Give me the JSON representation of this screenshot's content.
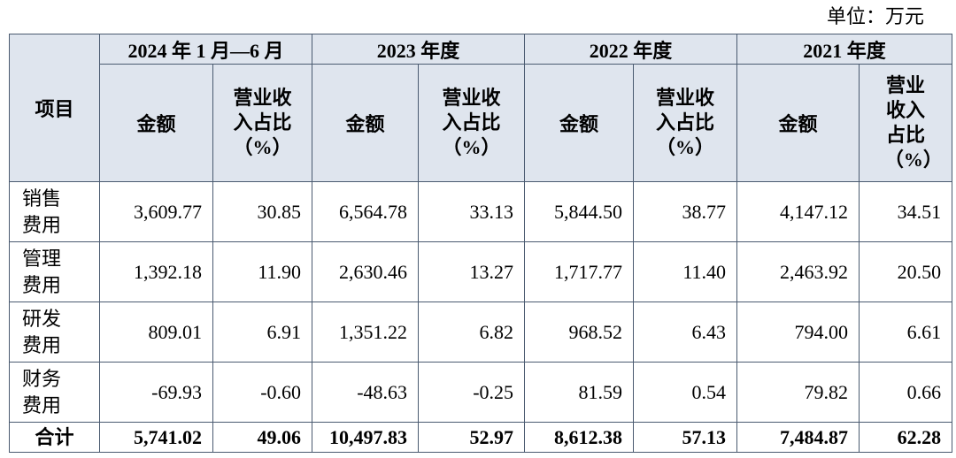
{
  "unit": "单位：万元",
  "table": {
    "corner": "项目",
    "periods": [
      "2024 年 1 月—6 月",
      "2023 年度",
      "2022 年度",
      "2021 年度"
    ],
    "subheaders": [
      "金额",
      "营业收入占比（%）"
    ],
    "rows": [
      [
        "销售费用",
        "3,609.77",
        "30.85",
        "6,564.78",
        "33.13",
        "5,844.50",
        "38.77",
        "4,147.12",
        "34.51"
      ],
      [
        "管理费用",
        "1,392.18",
        "11.90",
        "2,630.46",
        "13.27",
        "1,717.77",
        "11.40",
        "2,463.92",
        "20.50"
      ],
      [
        "研发费用",
        "809.01",
        "6.91",
        "1,351.22",
        "6.82",
        "968.52",
        "6.43",
        "794.00",
        "6.61"
      ],
      [
        "财务费用",
        "-69.93",
        "-0.60",
        "-48.63",
        "-0.25",
        "81.59",
        "0.54",
        "79.82",
        "0.66"
      ],
      [
        "合计",
        "5,741.02",
        "49.06",
        "10,497.83",
        "52.97",
        "8,612.38",
        "57.13",
        "7,484.87",
        "62.28"
      ]
    ]
  }
}
